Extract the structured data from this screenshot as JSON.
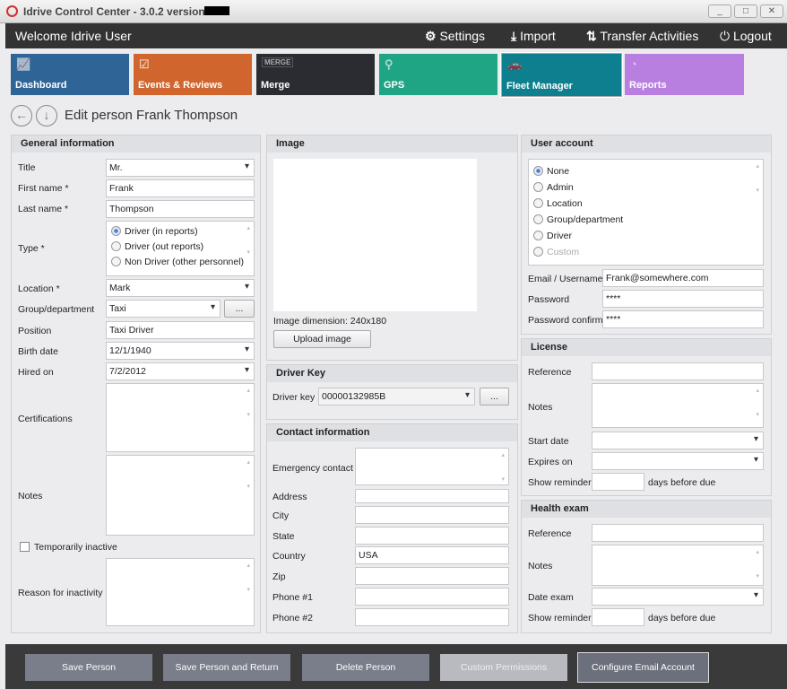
{
  "window": {
    "title": "Idrive Control Center - 3.0.2 version -",
    "controls": [
      "minimize",
      "maximize",
      "close"
    ]
  },
  "header": {
    "welcome": "Welcome Idrive User",
    "settings": "Settings",
    "import": "Import",
    "transfer": "Transfer Activities",
    "logout": "Logout"
  },
  "tiles": [
    {
      "label": "Dashboard",
      "color": "#2f6596",
      "icon": "chart-icon"
    },
    {
      "label": "Events & Reviews",
      "color": "#d0652d",
      "icon": "clipboard-icon"
    },
    {
      "label": "Merge",
      "color": "#2a2c31",
      "icon": "merge-icon"
    },
    {
      "label": "GPS",
      "color": "#1fa584",
      "icon": "map-pin-icon"
    },
    {
      "label": "Fleet Manager",
      "color": "#0d7f8f",
      "icon": "cars-icon",
      "active": true
    },
    {
      "label": "Reports",
      "color": "#b87ee0",
      "icon": "pie-chart-icon"
    }
  ],
  "page": {
    "title": "Edit person Frank Thompson"
  },
  "general": {
    "heading": "General information",
    "title_label": "Title",
    "title_value": "Mr.",
    "first_label": "First name *",
    "first_value": "Frank",
    "last_label": "Last name *",
    "last_value": "Thompson",
    "type_label": "Type *",
    "type_options": [
      "Driver (in reports)",
      "Driver (out reports)",
      "Non Driver (other personnel)"
    ],
    "type_selected": 0,
    "location_label": "Location *",
    "location_value": "Mark",
    "group_label": "Group/department",
    "group_value": "Taxi",
    "group_button": "...",
    "position_label": "Position",
    "position_value": "Taxi Driver",
    "birth_label": "Birth date",
    "birth_value": "12/1/1940",
    "hired_label": "Hired on",
    "hired_value": "7/2/2012",
    "cert_label": "Certifications",
    "notes_label": "Notes",
    "inactive_label": "Temporarily inactive",
    "reason_label": "Reason for inactivity"
  },
  "image": {
    "heading": "Image",
    "dimension": "Image dimension:  240x180",
    "upload": "Upload image"
  },
  "driver_key": {
    "heading": "Driver Key",
    "label": "Driver key",
    "value": "00000132985B",
    "button": "..."
  },
  "contact": {
    "heading": "Contact information",
    "emergency": "Emergency contact",
    "address": "Address",
    "city": "City",
    "state": "State",
    "country": "Country",
    "country_value": "USA",
    "zip": "Zip",
    "phone1": "Phone #1",
    "phone2": "Phone #2"
  },
  "user_account": {
    "heading": "User account",
    "options": [
      "None",
      "Admin",
      "Location",
      "Group/department",
      "Driver",
      "Custom"
    ],
    "selected": 0,
    "email_label": "Email / Username",
    "email_value": "Frank@somewhere.com",
    "password_label": "Password",
    "password_value": "****",
    "confirm_label": "Password confirm",
    "confirm_value": "****"
  },
  "license": {
    "heading": "License",
    "reference": "Reference",
    "notes": "Notes",
    "start": "Start date",
    "expires": "Expires on",
    "reminder": "Show reminder",
    "days": "days before due"
  },
  "health": {
    "heading": "Health exam",
    "reference": "Reference",
    "notes": "Notes",
    "date": "Date exam",
    "reminder": "Show reminder",
    "days": "days before due"
  },
  "buttons": {
    "save": "Save Person",
    "save_return": "Save Person and Return",
    "delete": "Delete Person",
    "custom": "Custom Permissions",
    "email": "Configure Email Account"
  }
}
